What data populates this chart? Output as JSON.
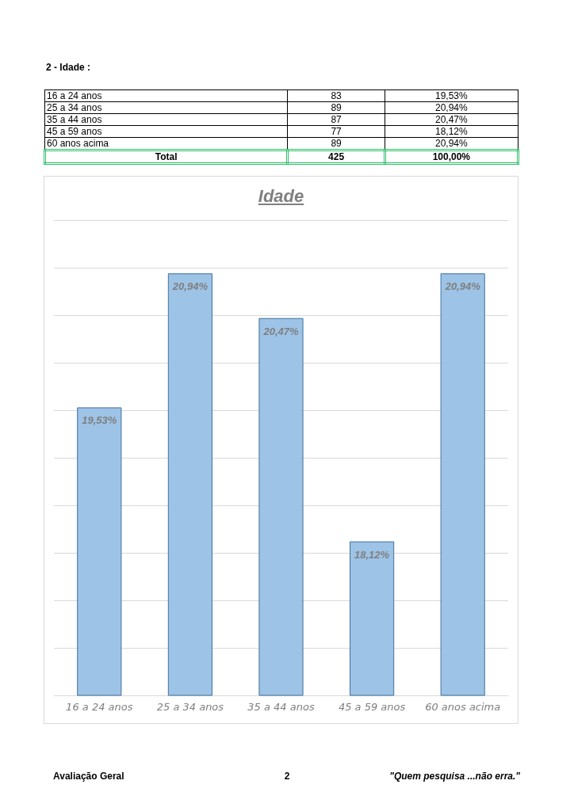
{
  "chart_data": [
    {
      "type": "other",
      "title": "2 - Idade :",
      "annotations": [
        "16 a 24 anos",
        "83",
        "19,53%",
        "25 a 34 anos",
        "89",
        "20,94%",
        "35 a 44 anos",
        "87",
        "20,47%",
        "45 a 59 anos",
        "77",
        "18,12%",
        "60 anos acima",
        "89",
        "20,94%",
        "Total",
        "425",
        "100,00%"
      ]
    },
    {
      "type": "bar",
      "title": "Idade",
      "categories": [
        "16 a 24 anos",
        "25 a 34 anos",
        "35 a 44 anos",
        "45 a 59 anos",
        "60 anos acima"
      ],
      "values": [
        19.53,
        20.94,
        20.47,
        18.12,
        20.94
      ],
      "value_labels": [
        "19,53%",
        "20,94%",
        "20,47%",
        "18,12%",
        "20,94%"
      ],
      "color": "#9dc3e6",
      "ylim": [
        16.5,
        21.5
      ],
      "yticks": [
        {
          "value": 16.5,
          "label": null
        },
        {
          "value": 17,
          "label": null
        },
        {
          "value": 17.5,
          "label": null
        },
        {
          "value": 18,
          "label": null
        },
        {
          "value": 18.5,
          "label": null
        },
        {
          "value": 19,
          "label": null
        },
        {
          "value": 19.5,
          "label": null
        },
        {
          "value": 20,
          "label": null
        },
        {
          "value": 20.5,
          "label": null
        },
        {
          "value": 21,
          "label": null
        },
        {
          "value": 21.5,
          "label": null
        }
      ],
      "tick_labels": "x",
      "grid": "y",
      "annotations": [
        "Avaliação Geral",
        "2",
        "\"Quem pesquisa ...não erra.\""
      ]
    }
  ]
}
